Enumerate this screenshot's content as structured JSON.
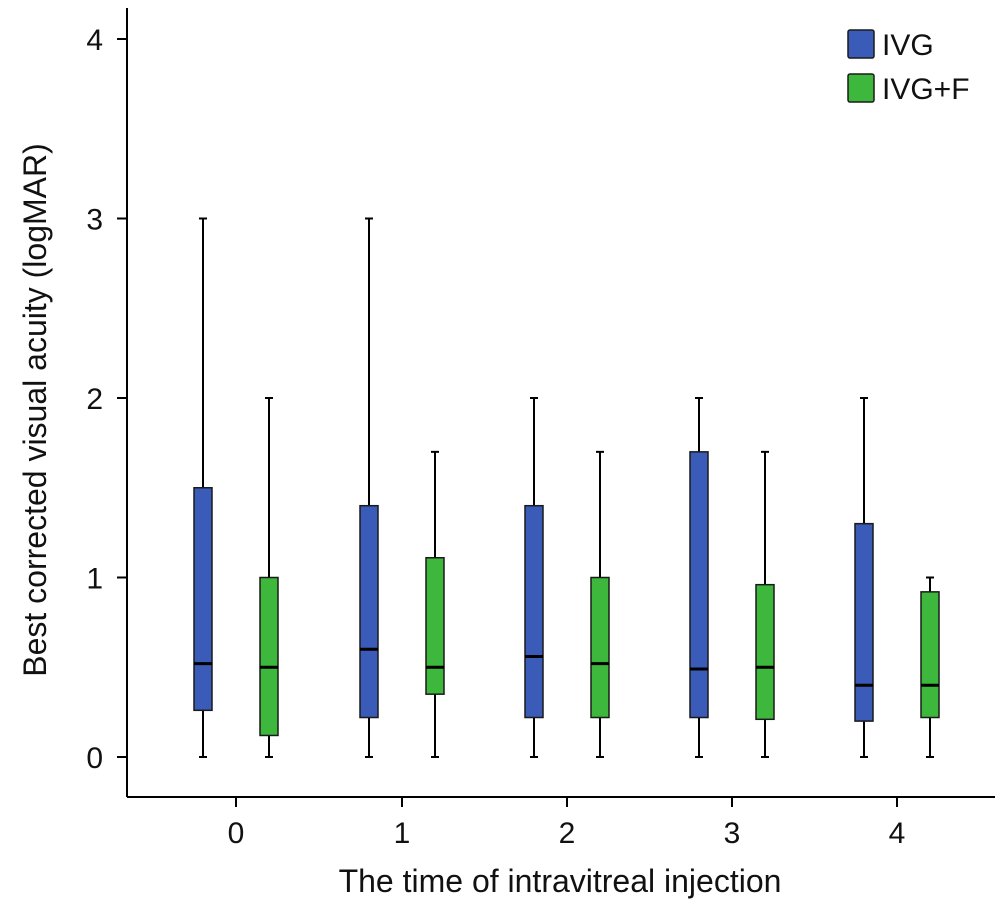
{
  "chart_data": {
    "type": "boxplot",
    "title": "",
    "xlabel": "The time of intravitreal injection",
    "ylabel": "Best corrected visual acuity (logMAR)",
    "categories": [
      "0",
      "1",
      "2",
      "3",
      "4"
    ],
    "ylim": [
      -0.2,
      4.15
    ],
    "yticks": [
      0,
      1,
      2,
      3,
      4
    ],
    "grid": false,
    "legend_position": "top-right",
    "series": [
      {
        "name": "IVG",
        "color": "#3a5bb8",
        "boxes": [
          {
            "min": 0,
            "q1": 0.26,
            "median": 0.52,
            "q3": 1.5,
            "max": 3.0
          },
          {
            "min": 0,
            "q1": 0.22,
            "median": 0.6,
            "q3": 1.4,
            "max": 3.0
          },
          {
            "min": 0,
            "q1": 0.22,
            "median": 0.56,
            "q3": 1.4,
            "max": 2.0
          },
          {
            "min": 0,
            "q1": 0.22,
            "median": 0.49,
            "q3": 1.7,
            "max": 2.0
          },
          {
            "min": 0,
            "q1": 0.2,
            "median": 0.4,
            "q3": 1.3,
            "max": 2.0
          }
        ]
      },
      {
        "name": "IVG+F",
        "color": "#3db83d",
        "boxes": [
          {
            "min": 0,
            "q1": 0.12,
            "median": 0.5,
            "q3": 1.0,
            "max": 2.0
          },
          {
            "min": 0,
            "q1": 0.35,
            "median": 0.5,
            "q3": 1.11,
            "max": 1.7
          },
          {
            "min": 0,
            "q1": 0.22,
            "median": 0.52,
            "q3": 1.0,
            "max": 1.7
          },
          {
            "min": 0,
            "q1": 0.21,
            "median": 0.5,
            "q3": 0.96,
            "max": 1.7
          },
          {
            "min": 0,
            "q1": 0.22,
            "median": 0.4,
            "q3": 0.92,
            "max": 1.0
          }
        ]
      }
    ]
  }
}
